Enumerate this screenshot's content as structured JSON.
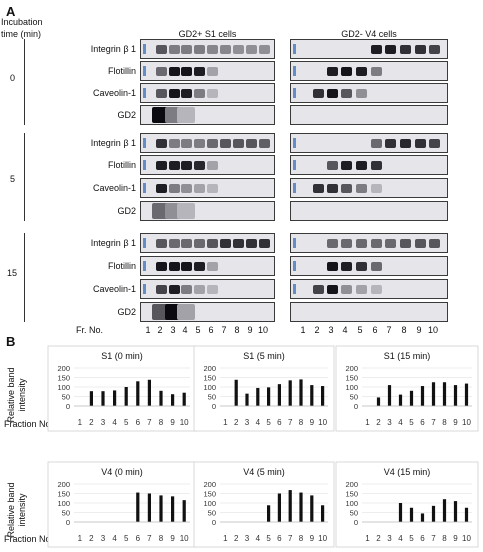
{
  "panel_a": {
    "letter": "A",
    "incubation_label_1": "Incubation",
    "incubation_label_2": "time (min)",
    "col_headers": [
      "GD2+ S1 cells",
      "GD2- V4 cells"
    ],
    "fraction_label": "Fr. No.",
    "fraction_numbers": [
      "1",
      "2",
      "3",
      "4",
      "5",
      "6",
      "7",
      "8",
      "9",
      "10"
    ],
    "groups": [
      {
        "time": "0",
        "rows": [
          "Integrin β 1",
          "Flotillin",
          "Caveolin-1",
          "GD2"
        ]
      },
      {
        "time": "5",
        "rows": [
          "Integrin β 1",
          "Flotillin",
          "Caveolin-1",
          "GD2"
        ]
      },
      {
        "time": "15",
        "rows": [
          "Integrin β 1",
          "Flotillin",
          "Caveolin-1",
          "GD2"
        ]
      }
    ]
  },
  "panel_b": {
    "letter": "B",
    "ylabel_1": "Relative band",
    "ylabel_2": "intensity",
    "xlabel": "Fraction No."
  },
  "chart_data": [
    {
      "type": "bar",
      "title": "S1 (0 min)",
      "categories": [
        "1",
        "2",
        "3",
        "4",
        "5",
        "6",
        "7",
        "8",
        "9",
        "10"
      ],
      "values": [
        0,
        78,
        78,
        82,
        100,
        130,
        138,
        80,
        62,
        70
      ],
      "ylim": [
        0,
        200
      ],
      "yticks": [
        0,
        50,
        100,
        150,
        200
      ]
    },
    {
      "type": "bar",
      "title": "S1 (5 min)",
      "categories": [
        "1",
        "2",
        "3",
        "4",
        "5",
        "6",
        "7",
        "8",
        "9",
        "10"
      ],
      "values": [
        0,
        138,
        65,
        95,
        98,
        115,
        135,
        140,
        110,
        105
      ],
      "ylim": [
        0,
        200
      ],
      "yticks": [
        0,
        50,
        100,
        150,
        200
      ]
    },
    {
      "type": "bar",
      "title": "S1 (15 min)",
      "categories": [
        "1",
        "2",
        "3",
        "4",
        "5",
        "6",
        "7",
        "8",
        "9",
        "10"
      ],
      "values": [
        0,
        45,
        110,
        60,
        80,
        105,
        125,
        125,
        110,
        118
      ],
      "ylim": [
        0,
        200
      ],
      "yticks": [
        0,
        50,
        100,
        150,
        200
      ]
    },
    {
      "type": "bar",
      "title": "V4 (0 min)",
      "categories": [
        "1",
        "2",
        "3",
        "4",
        "5",
        "6",
        "7",
        "8",
        "9",
        "10"
      ],
      "values": [
        0,
        0,
        0,
        0,
        0,
        155,
        150,
        140,
        135,
        115
      ],
      "ylim": [
        0,
        200
      ],
      "yticks": [
        0,
        50,
        100,
        150,
        200
      ]
    },
    {
      "type": "bar",
      "title": "V4 (5 min)",
      "categories": [
        "1",
        "2",
        "3",
        "4",
        "5",
        "6",
        "7",
        "8",
        "9",
        "10"
      ],
      "values": [
        0,
        0,
        0,
        0,
        88,
        150,
        168,
        155,
        140,
        88
      ],
      "ylim": [
        0,
        200
      ],
      "yticks": [
        0,
        50,
        100,
        150,
        200
      ]
    },
    {
      "type": "bar",
      "title": "V4 (15 min)",
      "categories": [
        "1",
        "2",
        "3",
        "4",
        "5",
        "6",
        "7",
        "8",
        "9",
        "10"
      ],
      "values": [
        0,
        0,
        0,
        100,
        75,
        45,
        85,
        120,
        110,
        75
      ],
      "ylim": [
        0,
        200
      ],
      "yticks": [
        0,
        50,
        100,
        150,
        200
      ]
    }
  ]
}
